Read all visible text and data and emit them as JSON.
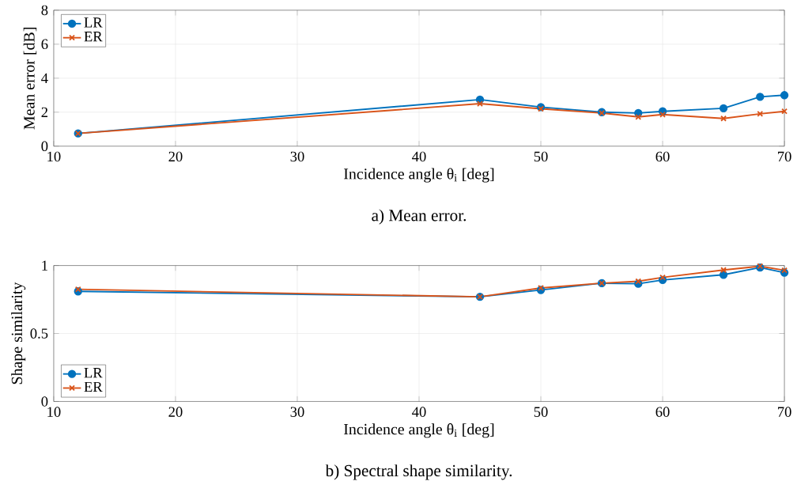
{
  "chart_data": [
    {
      "type": "line",
      "title": "a) Mean error.",
      "xlabel": "Incidence angle θ$_{i}$ [deg]",
      "ylabel": "Mean error [dB]",
      "x": [
        12,
        45,
        50,
        55,
        58,
        60,
        65,
        68,
        70
      ],
      "series": [
        {
          "name": "LR",
          "color": "#0072bd",
          "marker": "circle",
          "values": [
            0.75,
            2.74,
            2.3,
            2.0,
            1.95,
            2.05,
            2.23,
            2.9,
            3.0
          ]
        },
        {
          "name": "ER",
          "color": "#d95319",
          "marker": "cross",
          "values": [
            0.75,
            2.5,
            2.2,
            1.95,
            1.72,
            1.86,
            1.63,
            1.9,
            2.05
          ]
        }
      ],
      "xlim": [
        10,
        70
      ],
      "xticks": [
        10,
        20,
        30,
        40,
        50,
        60,
        70
      ],
      "ylim": [
        0,
        8
      ],
      "yticks": [
        0,
        2,
        4,
        6,
        8
      ],
      "grid": true,
      "legend": "top left"
    },
    {
      "type": "line",
      "title": "b) Spectral shape similarity.",
      "xlabel": "Incidence angle θ$_{i}$ [deg]",
      "ylabel": "Shape similarity",
      "x": [
        12,
        45,
        50,
        55,
        58,
        60,
        65,
        68,
        70
      ],
      "series": [
        {
          "name": "LR",
          "color": "#0072bd",
          "marker": "circle",
          "values": [
            0.81,
            0.77,
            0.82,
            0.87,
            0.866,
            0.894,
            0.932,
            0.985,
            0.948
          ]
        },
        {
          "name": "ER",
          "color": "#d95319",
          "marker": "cross",
          "values": [
            0.825,
            0.77,
            0.835,
            0.87,
            0.884,
            0.913,
            0.967,
            0.995,
            0.965
          ]
        }
      ],
      "xlim": [
        10,
        70
      ],
      "xticks": [
        10,
        20,
        30,
        40,
        50,
        60,
        70
      ],
      "ylim": [
        0,
        1
      ],
      "yticks": [
        0,
        0.5,
        1
      ],
      "grid": true,
      "legend": "bottom left"
    }
  ]
}
